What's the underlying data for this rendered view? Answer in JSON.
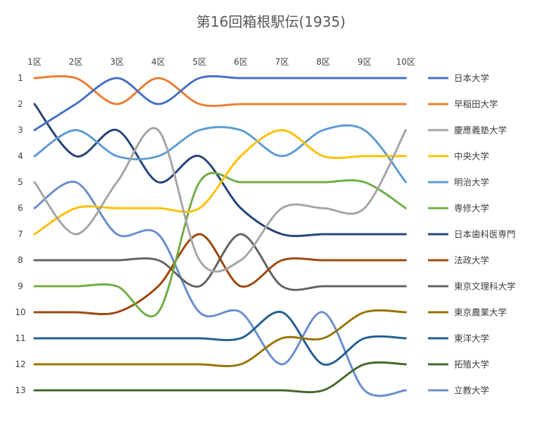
{
  "chart_data": {
    "type": "line",
    "title": "第16回箱根駅伝(1935)",
    "xlabel": "",
    "ylabel": "",
    "categories": [
      "1区",
      "2区",
      "3区",
      "4区",
      "5区",
      "6区",
      "7区",
      "8区",
      "9区",
      "10区"
    ],
    "y_ticks": [
      "1",
      "2",
      "3",
      "4",
      "5",
      "6",
      "7",
      "8",
      "9",
      "10",
      "11",
      "12",
      "13"
    ],
    "ylim": [
      1,
      13
    ],
    "y_reversed": true,
    "x_axis_position": "top",
    "grid": false,
    "legend_position": "right",
    "series": [
      {
        "name": "日本大学",
        "color": "#4472C4",
        "values": [
          3,
          2,
          1,
          2,
          1,
          1,
          1,
          1,
          1,
          1
        ]
      },
      {
        "name": "早稲田大学",
        "color": "#ED7D31",
        "values": [
          1,
          1,
          2,
          1,
          2,
          2,
          2,
          2,
          2,
          2
        ]
      },
      {
        "name": "慶應義塾大学",
        "color": "#A5A5A5",
        "values": [
          5,
          7,
          5,
          3,
          8,
          8,
          6,
          6,
          6,
          3
        ]
      },
      {
        "name": "中央大学",
        "color": "#FFC000",
        "values": [
          7,
          6,
          6,
          6,
          6,
          4,
          3,
          4,
          4,
          4
        ]
      },
      {
        "name": "明治大学",
        "color": "#5B9BD5",
        "values": [
          4,
          3,
          4,
          4,
          3,
          3,
          4,
          3,
          3,
          5
        ]
      },
      {
        "name": "専修大学",
        "color": "#70AD47",
        "values": [
          9,
          9,
          9,
          10,
          5,
          5,
          5,
          5,
          5,
          6
        ]
      },
      {
        "name": "日本歯科医専門",
        "color": "#264478",
        "values": [
          2,
          4,
          3,
          5,
          4,
          6,
          7,
          7,
          7,
          7
        ]
      },
      {
        "name": "法政大学",
        "color": "#9E480E",
        "values": [
          10,
          10,
          10,
          9,
          7,
          9,
          8,
          8,
          8,
          8
        ]
      },
      {
        "name": "東京文理科大学",
        "color": "#636363",
        "values": [
          8,
          8,
          8,
          8,
          9,
          7,
          9,
          9,
          9,
          9
        ]
      },
      {
        "name": "東京農業大学",
        "color": "#997300",
        "values": [
          12,
          12,
          12,
          12,
          12,
          12,
          11,
          11,
          10,
          10
        ]
      },
      {
        "name": "東洋大学",
        "color": "#255E91",
        "values": [
          11,
          11,
          11,
          11,
          11,
          11,
          10,
          12,
          11,
          11
        ]
      },
      {
        "name": "拓殖大学",
        "color": "#43682B",
        "values": [
          13,
          13,
          13,
          13,
          13,
          13,
          13,
          13,
          12,
          12
        ]
      },
      {
        "name": "立教大学",
        "color": "#698ED0",
        "values": [
          6,
          5,
          7,
          7,
          10,
          10,
          12,
          10,
          13,
          13
        ]
      }
    ]
  }
}
